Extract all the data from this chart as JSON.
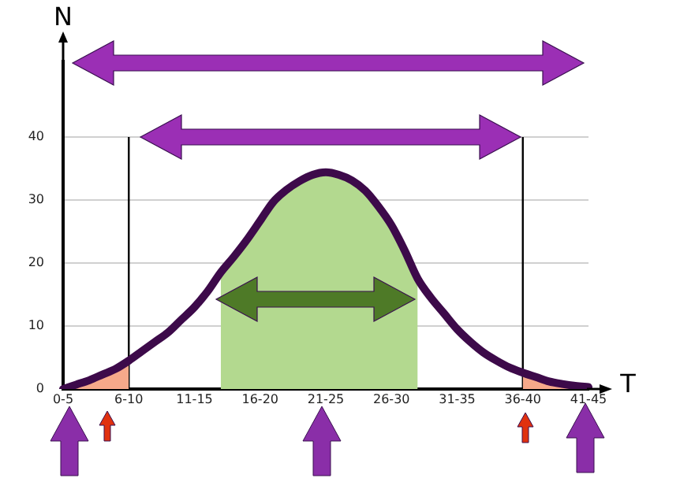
{
  "chart_data": {
    "type": "line",
    "xlabel": "T",
    "ylabel": "N",
    "categories": [
      "0-5",
      null,
      null,
      null,
      null,
      "6-10",
      null,
      null,
      null,
      null,
      "11-15",
      null,
      null,
      null,
      null,
      "16-20",
      null,
      null,
      null,
      null,
      "21-25",
      null,
      null,
      null,
      null,
      "26-30",
      null,
      null,
      null,
      null,
      "31-35",
      null,
      null,
      null,
      null,
      "36-40",
      null,
      null,
      null,
      null,
      "41-45"
    ],
    "series": [
      {
        "color": "#3d0a4a",
        "values": [
          0,
          0.7,
          1.4,
          2.3,
          3.2,
          4.5,
          6,
          7.5,
          9,
          11,
          13,
          15.5,
          18.5,
          21,
          23.7,
          26.7,
          29.7,
          31.6,
          33,
          34,
          34.4,
          34,
          33.1,
          31.5,
          29,
          26,
          22,
          17.5,
          14.5,
          12,
          9.5,
          7.5,
          5.8,
          4.5,
          3.4,
          2.6,
          1.9,
          1.2,
          0.8,
          0.5,
          0.3
        ]
      },
      {
        "type": "area",
        "color": "#f6a98a",
        "values": [
          0,
          0.7,
          1.4,
          2.3,
          3.2,
          4.5,
          null,
          null,
          null,
          null,
          null,
          null,
          null,
          null,
          null,
          null,
          null,
          null,
          null,
          null,
          null,
          null,
          null,
          null,
          null,
          null,
          null,
          null,
          null,
          null,
          null,
          null,
          null,
          null,
          null,
          null,
          null,
          null,
          null,
          null,
          null
        ]
      },
      {
        "type": "area",
        "color": "#b3d98f",
        "values": [
          null,
          null,
          null,
          null,
          null,
          null,
          null,
          null,
          null,
          null,
          null,
          null,
          18.5,
          21,
          23.7,
          26.7,
          29.7,
          31.6,
          33,
          34,
          34.4,
          34,
          33.1,
          31.5,
          29,
          26,
          22,
          17.5,
          null,
          null,
          null,
          null,
          null,
          null,
          null,
          null,
          null,
          null,
          null,
          null,
          null
        ]
      },
      {
        "type": "area",
        "color": "#f6a98a",
        "values": [
          null,
          null,
          null,
          null,
          null,
          null,
          null,
          null,
          null,
          null,
          null,
          null,
          null,
          null,
          null,
          null,
          null,
          null,
          null,
          null,
          null,
          null,
          null,
          null,
          null,
          null,
          null,
          null,
          null,
          null,
          null,
          null,
          null,
          null,
          null,
          2.6,
          1.9,
          1.2,
          0.8,
          0.5,
          0.3
        ]
      }
    ],
    "ylim": [
      0,
      52
    ],
    "yticks": [
      0,
      10,
      20,
      30,
      40
    ],
    "grid": "y",
    "marker": "none",
    "line_style": "solid",
    "ref_lines": [
      {
        "axis": "x",
        "value": "6-10",
        "color": "#000000"
      },
      {
        "axis": "x",
        "value": "36-40",
        "color": "#000000"
      }
    ]
  }
}
